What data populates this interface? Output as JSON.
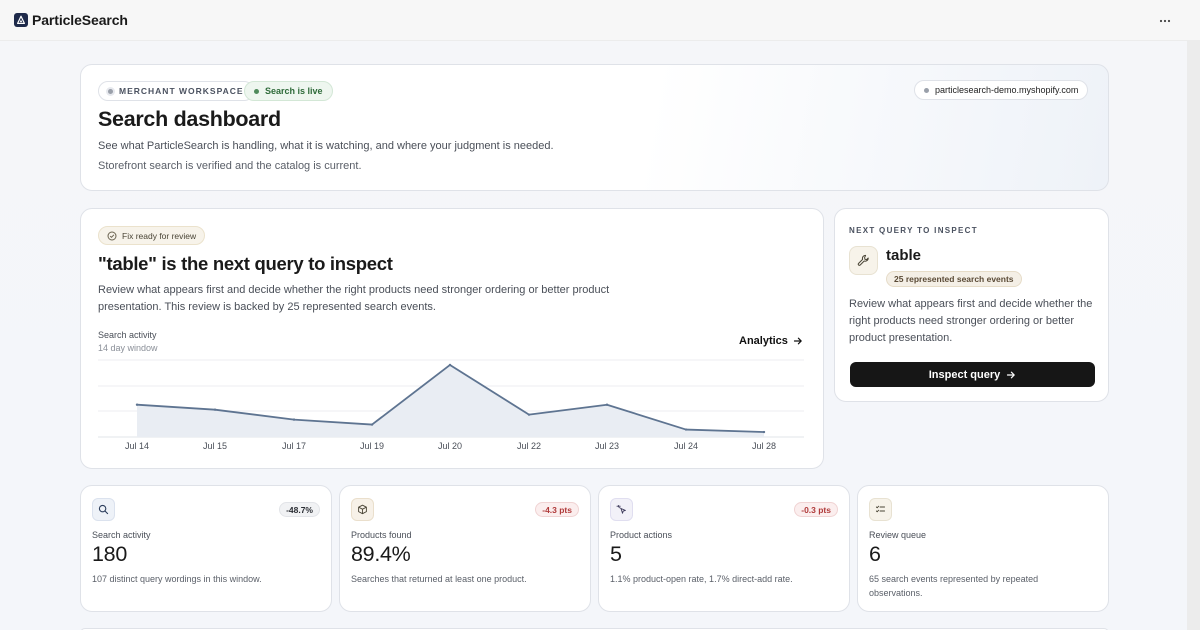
{
  "app": {
    "name": "ParticleSearch"
  },
  "hero": {
    "workspace_label": "MERCHANT WORKSPACE",
    "status_label": "Search is live",
    "store_domain": "particlesearch-demo.myshopify.com",
    "title": "Search dashboard",
    "subtitle": "See what ParticleSearch is handling, what it is watching, and where your judgment is needed.",
    "status_text": "Storefront search is verified and the catalog is current."
  },
  "focus": {
    "badge": "Fix ready for review",
    "title": "\"table\" is the next query to inspect",
    "description": "Review what appears first and decide whether the right products need stronger ordering or better product presentation. This review is backed by 25 represented search events.",
    "chart_label": "Search activity",
    "chart_window": "14 day window",
    "analytics_link": "Analytics"
  },
  "chart_data": {
    "type": "area",
    "x": [
      "Jul 14",
      "Jul 15",
      "Jul 17",
      "Jul 19",
      "Jul 20",
      "Jul 22",
      "Jul 23",
      "Jul 24",
      "Jul 28"
    ],
    "values": [
      13,
      11,
      7,
      5,
      29,
      9,
      13,
      3,
      2
    ],
    "ylim": [
      0,
      31
    ],
    "grid": true,
    "color": "#5e7491",
    "fill": "#e9edf3"
  },
  "side": {
    "kicker": "NEXT QUERY TO INSPECT",
    "query": "table",
    "events_badge": "25 represented search events",
    "description": "Review what appears first and decide whether the right products need stronger ordering or better product presentation.",
    "button_label": "Inspect query"
  },
  "metrics": [
    {
      "icon": "search-icon",
      "label": "Search activity",
      "value": "180",
      "badge": "-48.7%",
      "description": "107 distinct query wordings in this window."
    },
    {
      "icon": "box-icon",
      "label": "Products found",
      "value": "89.4%",
      "badge": "-4.3 pts",
      "description": "Searches that returned at least one product."
    },
    {
      "icon": "sparkle-click-icon",
      "label": "Product actions",
      "value": "5",
      "badge": "-0.3 pts",
      "description": "1.1% product‑open rate, 1.7% direct‑add rate."
    },
    {
      "icon": "checklist-icon",
      "label": "Review queue",
      "value": "6",
      "badge": "",
      "description": "65 search events represented by repeated observations."
    }
  ],
  "colors": {
    "live_green": "#4f8a5b",
    "negative_red": "#c0392b",
    "neutral_badge": "#f1f2f4",
    "button_dark": "#161616"
  }
}
